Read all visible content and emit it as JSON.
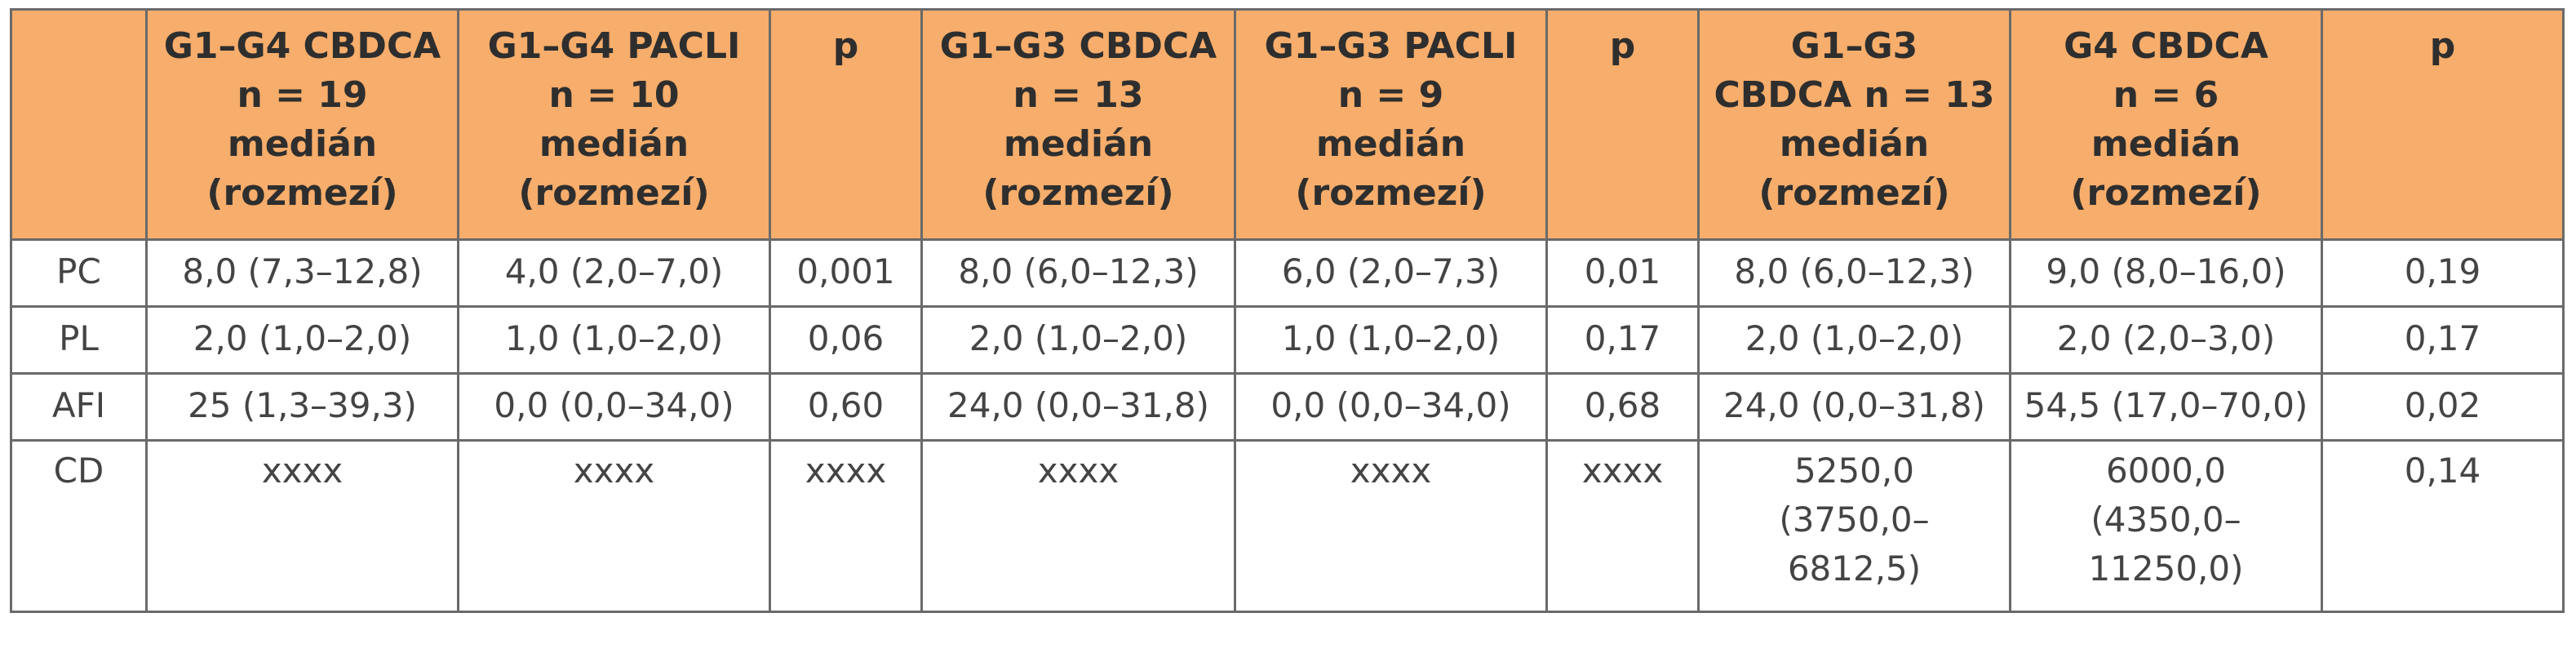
{
  "table": {
    "headers": [
      [
        ""
      ],
      [
        "G1–G4 CBDCA",
        "n = 19",
        "medián",
        "(rozmezí)"
      ],
      [
        "G1–G4 PACLI",
        "n = 10",
        "medián",
        "(rozmezí)"
      ],
      [
        "p"
      ],
      [
        "G1–G3 CBDCA",
        "n = 13",
        "medián",
        "(rozmezí)"
      ],
      [
        "G1–G3 PACLI",
        "n = 9",
        "medián",
        "(rozmezí)"
      ],
      [
        "p"
      ],
      [
        "G1–G3",
        "CBDCA n = 13",
        "medián",
        "(rozmezí)"
      ],
      [
        "G4 CBDCA",
        "n = 6",
        "medián",
        "(rozmezí)"
      ],
      [
        "p"
      ]
    ],
    "rows": [
      {
        "label": "PC",
        "cells": [
          [
            "8,0 (7,3–12,8)"
          ],
          [
            "4,0 (2,0–7,0)"
          ],
          [
            "0,001"
          ],
          [
            "8,0 (6,0–12,3)"
          ],
          [
            "6,0 (2,0–7,3)"
          ],
          [
            "0,01"
          ],
          [
            "8,0 (6,0–12,3)"
          ],
          [
            "9,0 (8,0–16,0)"
          ],
          [
            "0,19"
          ]
        ]
      },
      {
        "label": "PL",
        "cells": [
          [
            "2,0 (1,0–2,0)"
          ],
          [
            "1,0 (1,0–2,0)"
          ],
          [
            "0,06"
          ],
          [
            "2,0 (1,0–2,0)"
          ],
          [
            "1,0 (1,0–2,0)"
          ],
          [
            "0,17"
          ],
          [
            "2,0 (1,0–2,0)"
          ],
          [
            "2,0 (2,0–3,0)"
          ],
          [
            "0,17"
          ]
        ]
      },
      {
        "label": "AFI",
        "cells": [
          [
            "25 (1,3–39,3)"
          ],
          [
            "0,0 (0,0–34,0)"
          ],
          [
            "0,60"
          ],
          [
            "24,0 (0,0–31,8)"
          ],
          [
            "0,0 (0,0–34,0)"
          ],
          [
            "0,68"
          ],
          [
            "24,0 (0,0–31,8)"
          ],
          [
            "54,5 (17,0–70,0)"
          ],
          [
            "0,02"
          ]
        ]
      },
      {
        "label": "CD",
        "cells": [
          [
            "xxxx"
          ],
          [
            "xxxx"
          ],
          [
            "xxxx"
          ],
          [
            "xxxx"
          ],
          [
            "xxxx"
          ],
          [
            "xxxx"
          ],
          [
            "5250,0",
            "(3750,0–",
            "6812,5)"
          ],
          [
            "6000,0",
            "(4350,0–",
            "11250,0)"
          ],
          [
            "0,14"
          ]
        ]
      }
    ]
  }
}
